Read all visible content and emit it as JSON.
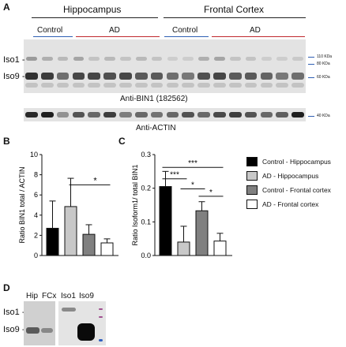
{
  "panel_A": {
    "letter": "A",
    "region_labels": [
      "Hippocampus",
      "Frontal Cortex"
    ],
    "group_labels": [
      "Control",
      "AD",
      "Control",
      "AD"
    ],
    "group_colors": {
      "control": "#2f5fb3",
      "ad": "#c0282d"
    },
    "iso1_label": "Iso1 -",
    "iso9_label": "Iso9 -",
    "mw_markers": [
      "110 KDa",
      "80 KDa",
      "60 KDa"
    ],
    "antibody_label": "Anti-BIN1 (182562)",
    "actin_label": "Anti-ACTIN",
    "actin_mw": "40 KDa"
  },
  "panel_B": {
    "letter": "B",
    "significance": "*"
  },
  "panel_C": {
    "letter": "C",
    "sig_labels": [
      "***",
      "***",
      "*",
      "*"
    ]
  },
  "legend": {
    "items": [
      {
        "label": "Control - Hippocampus",
        "color": "#000000"
      },
      {
        "label": "AD - Hippocampus",
        "color": "#c8c8c8"
      },
      {
        "label": "Control - Frontal cortex",
        "color": "#808080"
      },
      {
        "label": "AD - Frontal cortex",
        "color": "#ffffff"
      }
    ]
  },
  "panel_D": {
    "letter": "D",
    "lane_labels": [
      "Hip",
      "FCx",
      "Iso1",
      "Iso9"
    ],
    "iso1_label": "Iso1 -",
    "iso9_label": "Iso9 -"
  },
  "chart_data": [
    {
      "type": "bar",
      "title": "",
      "xlabel": "",
      "ylabel": "Ratio BIN1 total / ACTIN",
      "categories": [
        "Control - Hippocampus",
        "AD - Hippocampus",
        "Control - Frontal cortex",
        "AD - Frontal cortex"
      ],
      "values": [
        2.7,
        4.85,
        2.1,
        1.25
      ],
      "errors": [
        2.7,
        2.8,
        0.95,
        0.4
      ],
      "colors": [
        "#000000",
        "#c8c8c8",
        "#808080",
        "#ffffff"
      ],
      "ylim": [
        0,
        10
      ],
      "yticks": [
        "0",
        "2",
        "4",
        "6",
        "8",
        "10"
      ],
      "grid": false
    },
    {
      "type": "bar",
      "title": "",
      "xlabel": "",
      "ylabel": "Ratio Isoform1/ total BIN1",
      "categories": [
        "Control - Hippocampus",
        "AD - Hippocampus",
        "Control - Frontal cortex",
        "AD - Frontal cortex"
      ],
      "values": [
        0.205,
        0.04,
        0.133,
        0.043
      ],
      "errors": [
        0.045,
        0.047,
        0.027,
        0.023
      ],
      "colors": [
        "#000000",
        "#c8c8c8",
        "#808080",
        "#ffffff"
      ],
      "ylim": [
        0,
        0.3
      ],
      "yticks": [
        "0.0",
        "0.1",
        "0.2",
        "0.3"
      ],
      "grid": false
    }
  ]
}
